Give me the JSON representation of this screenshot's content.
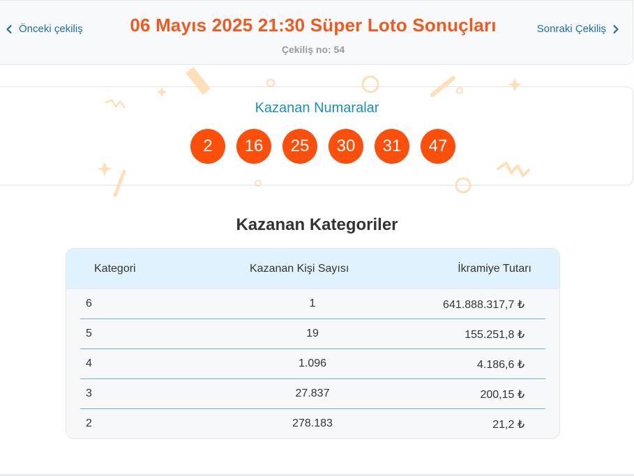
{
  "header": {
    "prev_label": "Önceki çekiliş",
    "next_label": "Sonraki Çekiliş",
    "title": "06 Mayıs 2025 21:30 Süper Loto Sonuçları",
    "draw_no": "Çekiliş no: 54"
  },
  "winning": {
    "title": "Kazanan Numaralar",
    "numbers": [
      "2",
      "16",
      "25",
      "30",
      "31",
      "47"
    ]
  },
  "categories": {
    "title": "Kazanan Kategoriler",
    "columns": [
      "Kategori",
      "Kazanan Kişi Sayısı",
      "İkramiye Tutarı"
    ],
    "rows": [
      {
        "category": "6",
        "winners": "1",
        "prize": "641.888.317,7 ₺"
      },
      {
        "category": "5",
        "winners": "19",
        "prize": "155.251,8 ₺"
      },
      {
        "category": "4",
        "winners": "1.096",
        "prize": "4.186,6 ₺"
      },
      {
        "category": "3",
        "winners": "27.837",
        "prize": "200,15 ₺"
      },
      {
        "category": "2",
        "winners": "278.183",
        "prize": "21,2 ₺"
      }
    ]
  },
  "colors": {
    "accent": "#f05a1e",
    "ball": "#fb4f0b",
    "link": "#1a6fa8",
    "table_header": "#dff2fd",
    "confetti": "#fde0b8"
  },
  "icons": {
    "prev": "chevron-left-icon",
    "next": "chevron-right-icon"
  }
}
